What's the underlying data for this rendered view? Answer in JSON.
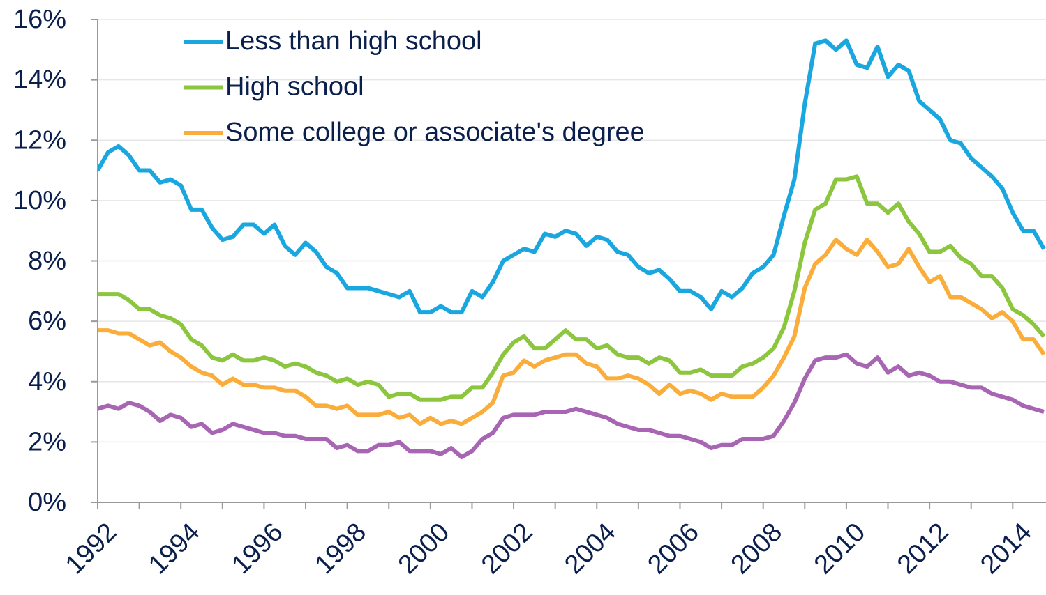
{
  "chart_data": {
    "type": "line",
    "x": [
      1992,
      1992.25,
      1992.5,
      1992.75,
      1993,
      1993.25,
      1993.5,
      1993.75,
      1994,
      1994.25,
      1994.5,
      1994.75,
      1995,
      1995.25,
      1995.5,
      1995.75,
      1996,
      1996.25,
      1996.5,
      1996.75,
      1997,
      1997.25,
      1997.5,
      1997.75,
      1998,
      1998.25,
      1998.5,
      1998.75,
      1999,
      1999.25,
      1999.5,
      1999.75,
      2000,
      2000.25,
      2000.5,
      2000.75,
      2001,
      2001.25,
      2001.5,
      2001.75,
      2002,
      2002.25,
      2002.5,
      2002.75,
      2003,
      2003.25,
      2003.5,
      2003.75,
      2004,
      2004.25,
      2004.5,
      2004.75,
      2005,
      2005.25,
      2005.5,
      2005.75,
      2006,
      2006.25,
      2006.5,
      2006.75,
      2007,
      2007.25,
      2007.5,
      2007.75,
      2008,
      2008.25,
      2008.5,
      2008.75,
      2009,
      2009.25,
      2009.5,
      2009.75,
      2010,
      2010.25,
      2010.5,
      2010.75,
      2011,
      2011.25,
      2011.5,
      2011.75,
      2012,
      2012.25,
      2012.5,
      2012.75,
      2013,
      2013.25,
      2013.5,
      2013.75,
      2014,
      2014.25,
      2014.5,
      2014.75
    ],
    "series": [
      {
        "name": "Less than high school",
        "color": "#1aa7e0",
        "values": [
          11.0,
          11.6,
          11.8,
          11.5,
          11.0,
          11.0,
          10.6,
          10.7,
          10.5,
          9.7,
          9.7,
          9.1,
          8.7,
          8.8,
          9.2,
          9.2,
          8.9,
          9.2,
          8.5,
          8.2,
          8.6,
          8.3,
          7.8,
          7.6,
          7.1,
          7.1,
          7.1,
          7.0,
          6.9,
          6.8,
          7.0,
          6.3,
          6.3,
          6.5,
          6.3,
          6.3,
          7.0,
          6.8,
          7.3,
          8.0,
          8.2,
          8.4,
          8.3,
          8.9,
          8.8,
          9.0,
          8.9,
          8.5,
          8.8,
          8.7,
          8.3,
          8.2,
          7.8,
          7.6,
          7.7,
          7.4,
          7.0,
          7.0,
          6.8,
          6.4,
          7.0,
          6.8,
          7.1,
          7.6,
          7.8,
          8.2,
          9.5,
          10.7,
          13.2,
          15.2,
          15.3,
          15.0,
          15.3,
          14.5,
          14.4,
          15.1,
          14.1,
          14.5,
          14.3,
          13.3,
          13.0,
          12.7,
          12.0,
          11.9,
          11.4,
          11.1,
          10.8,
          10.4,
          9.6,
          9.0,
          9.0,
          8.4
        ]
      },
      {
        "name": "High school",
        "color": "#8cc63f",
        "values": [
          6.9,
          6.9,
          6.9,
          6.7,
          6.4,
          6.4,
          6.2,
          6.1,
          5.9,
          5.4,
          5.2,
          4.8,
          4.7,
          4.9,
          4.7,
          4.7,
          4.8,
          4.7,
          4.5,
          4.6,
          4.5,
          4.3,
          4.2,
          4.0,
          4.1,
          3.9,
          4.0,
          3.9,
          3.5,
          3.6,
          3.6,
          3.4,
          3.4,
          3.4,
          3.5,
          3.5,
          3.8,
          3.8,
          4.3,
          4.9,
          5.3,
          5.5,
          5.1,
          5.1,
          5.4,
          5.7,
          5.4,
          5.4,
          5.1,
          5.2,
          4.9,
          4.8,
          4.8,
          4.6,
          4.8,
          4.7,
          4.3,
          4.3,
          4.4,
          4.2,
          4.2,
          4.2,
          4.5,
          4.6,
          4.8,
          5.1,
          5.8,
          7.0,
          8.6,
          9.7,
          9.9,
          10.7,
          10.7,
          10.8,
          9.9,
          9.9,
          9.6,
          9.9,
          9.3,
          8.9,
          8.3,
          8.3,
          8.5,
          8.1,
          7.9,
          7.5,
          7.5,
          7.1,
          6.4,
          6.2,
          5.9,
          5.5
        ]
      },
      {
        "name": "Some college or associate's degree",
        "color": "#fbad3b",
        "values": [
          5.7,
          5.7,
          5.6,
          5.6,
          5.4,
          5.2,
          5.3,
          5.0,
          4.8,
          4.5,
          4.3,
          4.2,
          3.9,
          4.1,
          3.9,
          3.9,
          3.8,
          3.8,
          3.7,
          3.7,
          3.5,
          3.2,
          3.2,
          3.1,
          3.2,
          2.9,
          2.9,
          2.9,
          3.0,
          2.8,
          2.9,
          2.6,
          2.8,
          2.6,
          2.7,
          2.6,
          2.8,
          3.0,
          3.3,
          4.2,
          4.3,
          4.7,
          4.5,
          4.7,
          4.8,
          4.9,
          4.9,
          4.6,
          4.5,
          4.1,
          4.1,
          4.2,
          4.1,
          3.9,
          3.6,
          3.9,
          3.6,
          3.7,
          3.6,
          3.4,
          3.6,
          3.5,
          3.5,
          3.5,
          3.8,
          4.2,
          4.8,
          5.5,
          7.1,
          7.9,
          8.2,
          8.7,
          8.4,
          8.2,
          8.7,
          8.3,
          7.8,
          7.9,
          8.4,
          7.8,
          7.3,
          7.5,
          6.8,
          6.8,
          6.6,
          6.4,
          6.1,
          6.3,
          6.0,
          5.4,
          5.4,
          4.9
        ]
      },
      {
        "color": "#a865b3",
        "values": [
          3.1,
          3.2,
          3.1,
          3.3,
          3.2,
          3.0,
          2.7,
          2.9,
          2.8,
          2.5,
          2.6,
          2.3,
          2.4,
          2.6,
          2.5,
          2.4,
          2.3,
          2.3,
          2.2,
          2.2,
          2.1,
          2.1,
          2.1,
          1.8,
          1.9,
          1.7,
          1.7,
          1.9,
          1.9,
          2.0,
          1.7,
          1.7,
          1.7,
          1.6,
          1.8,
          1.5,
          1.7,
          2.1,
          2.3,
          2.8,
          2.9,
          2.9,
          2.9,
          3.0,
          3.0,
          3.0,
          3.1,
          3.0,
          2.9,
          2.8,
          2.6,
          2.5,
          2.4,
          2.4,
          2.3,
          2.2,
          2.2,
          2.1,
          2.0,
          1.8,
          1.9,
          1.9,
          2.1,
          2.1,
          2.1,
          2.2,
          2.7,
          3.3,
          4.1,
          4.7,
          4.8,
          4.8,
          4.9,
          4.6,
          4.5,
          4.8,
          4.3,
          4.5,
          4.2,
          4.3,
          4.2,
          4.0,
          4.0,
          3.9,
          3.8,
          3.8,
          3.6,
          3.5,
          3.4,
          3.2,
          3.1,
          3.0
        ]
      }
    ],
    "xlim": [
      1992,
      2014.8
    ],
    "xticks": [
      1992,
      1994,
      1996,
      1998,
      2000,
      2002,
      2004,
      2006,
      2008,
      2010,
      2012,
      2014
    ],
    "xminorticks": [
      1993,
      1995,
      1997,
      1999,
      2001,
      2003,
      2005,
      2007,
      2009,
      2011,
      2013
    ],
    "ylim": [
      0,
      16
    ],
    "yticks": [
      {
        "value": 0,
        "label": "0%"
      },
      {
        "value": 2,
        "label": "2%"
      },
      {
        "value": 4,
        "label": "4%"
      },
      {
        "value": 6,
        "label": "6%"
      },
      {
        "value": 8,
        "label": "8%"
      },
      {
        "value": 10,
        "label": "10%"
      },
      {
        "value": 12,
        "label": "12%"
      },
      {
        "value": 14,
        "label": "14%"
      },
      {
        "value": 16,
        "label": "16%"
      }
    ],
    "grid": true,
    "legend": "top-left"
  }
}
